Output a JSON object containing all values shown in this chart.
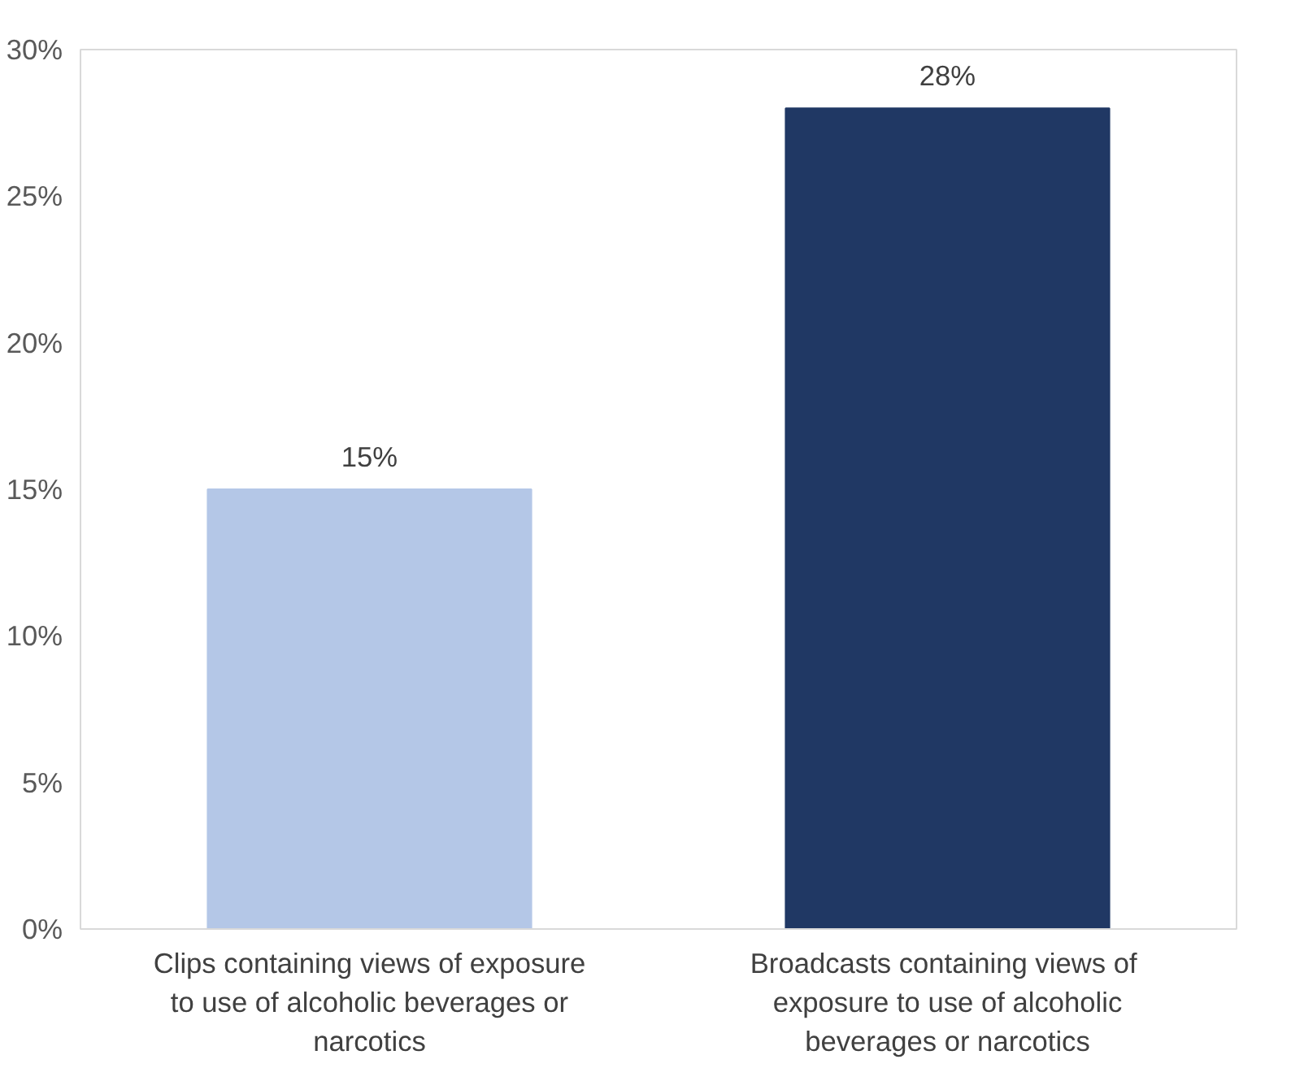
{
  "chart_data": {
    "type": "bar",
    "categories": [
      "Clips containing views of exposure to use of alcoholic beverages or narcotics",
      "Broadcasts  containing views of exposure to use of alcoholic beverages or narcotics"
    ],
    "values": [
      15,
      28
    ],
    "colors": [
      "#b4c7e7",
      "#203864"
    ],
    "value_labels": [
      "15%",
      "28%"
    ],
    "ylim": [
      0,
      30
    ],
    "yticks": [
      {
        "value": 0,
        "label": "0%"
      },
      {
        "value": 5,
        "label": "5%"
      },
      {
        "value": 10,
        "label": "10%"
      },
      {
        "value": 15,
        "label": "15%"
      },
      {
        "value": 20,
        "label": "20%"
      },
      {
        "value": 25,
        "label": "25%"
      },
      {
        "value": 30,
        "label": "30%"
      }
    ],
    "grid": false
  }
}
